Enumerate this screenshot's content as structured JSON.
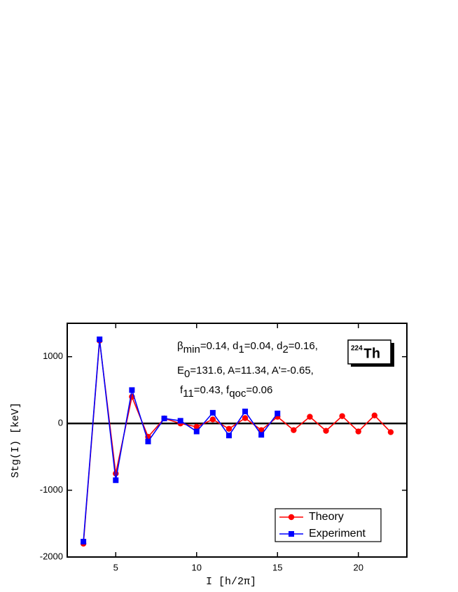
{
  "chart_data": {
    "type": "line",
    "x": [
      3,
      4,
      5,
      6,
      7,
      8,
      9,
      10,
      11,
      12,
      13,
      14,
      15,
      16,
      17,
      18,
      19,
      20,
      21,
      22
    ],
    "series": [
      {
        "name": "Theory",
        "color": "#ff0000",
        "marker": "circle",
        "values": [
          -1800,
          1240,
          -750,
          400,
          -200,
          75,
          0,
          -50,
          60,
          -80,
          80,
          -100,
          100,
          -100,
          100,
          -110,
          110,
          -120,
          120,
          -130
        ]
      },
      {
        "name": "Experiment",
        "color": "#0000ff",
        "marker": "square",
        "values": [
          -1770,
          1260,
          -850,
          500,
          -270,
          75,
          40,
          -120,
          160,
          -180,
          180,
          -170,
          150,
          null,
          null,
          null,
          null,
          null,
          null,
          null
        ]
      }
    ],
    "xlim": [
      2,
      23
    ],
    "xticks": [
      5,
      10,
      15,
      20
    ],
    "ylim": [
      -2000,
      1500
    ],
    "yticks": [
      -2000,
      -1000,
      0,
      1000
    ],
    "xlabel": "I  [h/2π]",
    "ylabel": "Stg(I)  [keV]",
    "zero_line": true,
    "legend": "lower right",
    "annotation_lines": [
      [
        "β",
        "min",
        "=0.14, d",
        "1",
        "=0.04, d",
        "2",
        "=0.16,"
      ],
      [
        "E",
        "0",
        "=131.6,  A=11.34, A'=-0.65,"
      ],
      [
        "f",
        "11",
        "=0.43, f",
        "qoc",
        "=0.06"
      ]
    ],
    "nucleus": {
      "mass": "224",
      "symbol": "Th"
    }
  }
}
